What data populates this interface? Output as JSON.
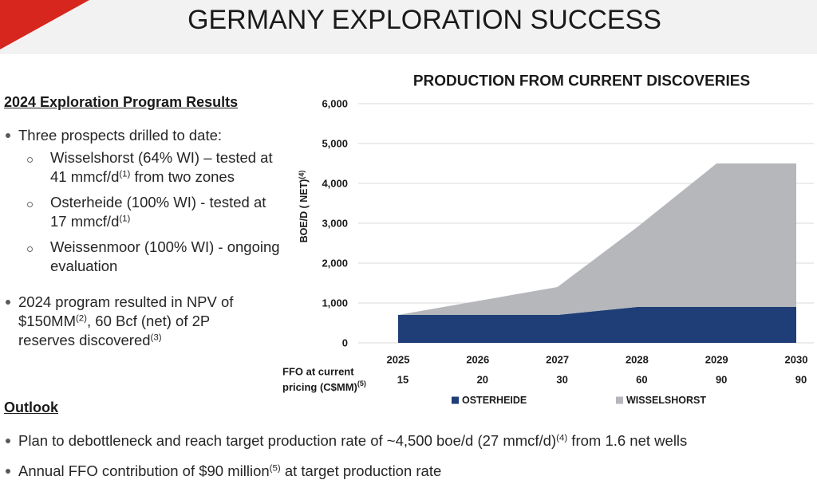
{
  "header": {
    "title": "GERMANY EXPLORATION SUCCESS",
    "band_color": "#f2f2f2",
    "accent_color": "#d7261e"
  },
  "results": {
    "heading": "2024 Exploration Program Results",
    "intro": "Three prospects drilled to date:",
    "prospects": [
      {
        "line1": "Wisselshorst (64% WI) – tested at",
        "line2": "41 mmcf/d",
        "line2_sup": "(1)",
        "line2_rest": " from two zones"
      },
      {
        "line1": "Osterheide (100% WI) - tested at",
        "line2": "17 mmcf/d",
        "line2_sup": "(1)"
      },
      {
        "line1": "Weissenmoor (100% WI) - ongoing",
        "line2": "evaluation"
      }
    ],
    "program": {
      "line1": "2024 program resulted in NPV of",
      "line2": "$150MM",
      "line2_sup": "(2)",
      "line2_rest": ", 60 Bcf (net) of 2P",
      "line3": "reserves discovered",
      "line3_sup": "(3)"
    }
  },
  "outlook": {
    "heading": "Outlook",
    "items": [
      {
        "text": "Plan to debottleneck and reach target production rate of ~4,500 boe/d (27 mmcf/d)",
        "sup": "(4)",
        "rest": " from 1.6 net wells"
      },
      {
        "text": "Annual FFO contribution of $90 million",
        "sup": "(5)",
        "rest": " at target production rate"
      }
    ]
  },
  "chart_data": {
    "type": "area",
    "stacked": true,
    "title": "PRODUCTION FROM CURRENT DISCOVERIES",
    "xlabel": "",
    "ylabel": "BOE/D ( NET)",
    "ylabel_sup": "(4)",
    "ylim": [
      0,
      6000
    ],
    "yticks": [
      0,
      1000,
      2000,
      3000,
      4000,
      5000,
      6000
    ],
    "ytick_labels": [
      "0",
      "1,000",
      "2,000",
      "3,000",
      "4,000",
      "5,000",
      "6,000"
    ],
    "categories": [
      "2025",
      "2026",
      "2027",
      "2028",
      "2029",
      "2030"
    ],
    "series": [
      {
        "name": "OSTERHEIDE",
        "color": "#1f3e78",
        "values": [
          700,
          700,
          700,
          900,
          900,
          900
        ]
      },
      {
        "name": "WISSELSHORST",
        "color": "#b5b7bb",
        "values": [
          0,
          350,
          700,
          2000,
          3600,
          3600
        ]
      }
    ],
    "grid": true,
    "legend_position": "bottom",
    "ffo_row": {
      "label_lines": [
        "FFO at current",
        "pricing (C$MM)"
      ],
      "label_sup": "(5)",
      "values": [
        15,
        20,
        30,
        60,
        90,
        90
      ]
    }
  }
}
